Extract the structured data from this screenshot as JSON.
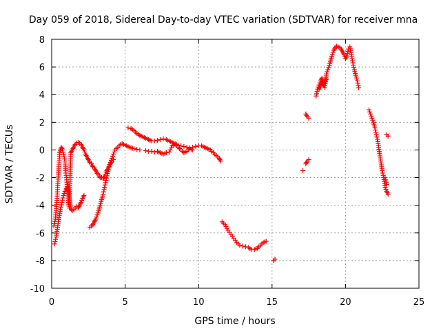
{
  "chart_data": {
    "type": "scatter",
    "title": "Day 059 of 2018, Sidereal Day-to-day VTEC variation (SDTVAR) for receiver mna",
    "xlabel": "GPS time / hours",
    "ylabel": "SDTVAR / TECUs",
    "xlim": [
      0,
      25
    ],
    "ylim": [
      -10,
      8
    ],
    "x_ticks": [
      0,
      5,
      10,
      15,
      20,
      25
    ],
    "y_ticks": [
      -10,
      -8,
      -6,
      -4,
      -2,
      0,
      2,
      4,
      6,
      8
    ],
    "grid": true,
    "marker": "+",
    "series": [
      {
        "name": "SDTVAR",
        "color": "#ff0000",
        "segments": [
          {
            "x": [
              0.15,
              0.25,
              0.35,
              0.45,
              0.55,
              0.65,
              0.75,
              0.85,
              0.9,
              0.95,
              1.0,
              1.05,
              1.1,
              1.15,
              1.2,
              1.3,
              1.4,
              1.5,
              1.6,
              1.7,
              1.8,
              1.9,
              2.0,
              2.1,
              2.2,
              2.3,
              2.4,
              2.5,
              2.6,
              2.7,
              2.8,
              2.9,
              3.0,
              3.1,
              3.2,
              3.3,
              3.4,
              3.5,
              3.6,
              3.7,
              3.8,
              3.9,
              4.0,
              4.1,
              4.2,
              4.3,
              4.4,
              4.5,
              4.6,
              4.7,
              4.8,
              4.9,
              5.0,
              5.1,
              5.2,
              5.3,
              5.4,
              5.5,
              5.6,
              5.8,
              6.0
            ],
            "y": [
              -5.5,
              -5.0,
              -3.8,
              -1.8,
              -0.2,
              0.2,
              0.0,
              -0.5,
              -0.8,
              -1.5,
              -2.0,
              -2.5,
              -3.0,
              -3.8,
              -4.2,
              -0.2,
              0.0,
              0.2,
              0.4,
              0.5,
              0.55,
              0.5,
              0.4,
              0.2,
              0.0,
              -0.3,
              -0.5,
              -0.7,
              -0.9,
              -1.0,
              -1.2,
              -1.3,
              -1.5,
              -1.7,
              -1.8,
              -2.0,
              -2.0,
              -2.1,
              -1.9,
              -1.6,
              -1.4,
              -1.2,
              -0.9,
              -0.6,
              -0.3,
              0.0,
              0.1,
              0.2,
              0.3,
              0.4,
              0.45,
              0.4,
              0.35,
              0.3,
              0.25,
              0.2,
              0.15,
              0.12,
              0.1,
              0.05,
              0.0
            ]
          },
          {
            "x": [
              0.2,
              0.3,
              0.4,
              0.5,
              0.6,
              0.7,
              0.8,
              0.9,
              1.0,
              1.1,
              1.2,
              1.3,
              1.4,
              1.5,
              1.6,
              1.7,
              1.8,
              1.9,
              2.0,
              2.1,
              2.2
            ],
            "y": [
              -6.8,
              -6.3,
              -5.6,
              -4.9,
              -4.3,
              -3.8,
              -3.3,
              -3.0,
              -2.8,
              -2.5,
              -3.5,
              -4.2,
              -4.4,
              -4.3,
              -4.2,
              -4.1,
              -4.2,
              -4.0,
              -3.8,
              -3.5,
              -3.3
            ]
          },
          {
            "x": [
              2.6,
              2.7,
              2.8,
              2.9,
              3.0,
              3.1,
              3.2,
              3.3,
              3.4,
              3.5,
              3.6,
              3.7,
              3.8,
              3.9,
              4.0,
              4.1,
              4.2
            ],
            "y": [
              -5.6,
              -5.5,
              -5.4,
              -5.2,
              -5.0,
              -4.7,
              -4.4,
              -4.0,
              -3.6,
              -3.2,
              -2.7,
              -2.2,
              -1.7,
              -1.3,
              -1.0,
              -0.8,
              -0.7
            ]
          },
          {
            "x": [
              5.2,
              5.4,
              5.6,
              5.8,
              6.0,
              6.2,
              6.4,
              6.6,
              6.8,
              7.0,
              7.2,
              7.4,
              7.6,
              7.8,
              8.0,
              8.2,
              8.4,
              8.6,
              8.8,
              9.0,
              9.2,
              9.4,
              9.6,
              9.8,
              10.0,
              10.2,
              10.4,
              10.6,
              10.8,
              11.0,
              11.2,
              11.4,
              11.5
            ],
            "y": [
              1.6,
              1.55,
              1.4,
              1.2,
              1.05,
              0.95,
              0.85,
              0.75,
              0.65,
              0.65,
              0.7,
              0.75,
              0.8,
              0.75,
              0.65,
              0.55,
              0.45,
              0.35,
              0.3,
              0.25,
              0.2,
              0.15,
              0.2,
              0.25,
              0.3,
              0.3,
              0.2,
              0.1,
              0.0,
              -0.2,
              -0.4,
              -0.6,
              -0.8
            ]
          },
          {
            "x": [
              6.4,
              6.6,
              6.8,
              7.0,
              7.2,
              7.4,
              7.6,
              7.8,
              8.0,
              8.2,
              8.4,
              8.6,
              8.8,
              9.0,
              9.2,
              9.4,
              9.6
            ],
            "y": [
              -0.05,
              -0.1,
              -0.1,
              -0.15,
              -0.1,
              -0.2,
              -0.3,
              -0.2,
              -0.15,
              0.3,
              0.4,
              0.2,
              0.0,
              -0.2,
              -0.1,
              0.1,
              0.0
            ]
          },
          {
            "x": [
              11.6,
              11.8,
              12.0,
              12.2,
              12.4,
              12.6,
              12.8,
              13.0,
              13.2,
              13.4,
              13.6,
              13.8,
              14.0,
              14.2,
              14.4,
              14.6
            ],
            "y": [
              -5.2,
              -5.4,
              -5.8,
              -6.1,
              -6.4,
              -6.7,
              -6.9,
              -6.95,
              -7.0,
              -7.05,
              -7.2,
              -7.2,
              -7.1,
              -6.9,
              -6.7,
              -6.6
            ]
          },
          {
            "x": [
              15.1,
              15.2
            ],
            "y": [
              -8.0,
              -7.9
            ]
          },
          {
            "x": [
              17.1
            ],
            "y": [
              -1.5
            ]
          },
          {
            "x": [
              17.3,
              17.4,
              17.5
            ],
            "y": [
              -1.0,
              -0.8,
              -0.7
            ]
          },
          {
            "x": [
              17.3,
              17.4,
              17.5
            ],
            "y": [
              2.6,
              2.4,
              2.3
            ]
          },
          {
            "x": [
              18.0,
              18.1,
              18.2,
              18.3,
              18.4,
              18.5,
              18.6,
              18.7,
              18.8,
              18.9,
              19.0,
              19.1,
              19.2,
              19.3,
              19.4,
              19.5,
              19.6,
              19.7,
              19.8,
              19.9,
              20.0,
              20.1,
              20.2,
              20.3,
              20.4,
              20.5,
              20.6,
              20.7,
              20.8,
              20.9
            ],
            "y": [
              3.9,
              4.4,
              4.7,
              5.0,
              5.2,
              4.8,
              4.5,
              5.5,
              5.8,
              6.1,
              6.5,
              6.9,
              7.2,
              7.4,
              7.5,
              7.45,
              7.4,
              7.3,
              7.1,
              6.9,
              6.6,
              6.8,
              7.3,
              7.45,
              6.9,
              6.3,
              5.8,
              5.4,
              5.0,
              4.5
            ]
          },
          {
            "x": [
              18.2,
              18.3,
              18.4,
              18.5,
              18.6,
              18.7
            ],
            "y": [
              4.4,
              4.6,
              4.9,
              4.7,
              5.0,
              5.1
            ]
          },
          {
            "x": [
              21.6,
              21.7,
              21.8,
              21.9,
              22.0,
              22.1,
              22.2,
              22.3,
              22.4,
              22.5,
              22.6,
              22.7,
              22.8,
              22.9
            ],
            "y": [
              2.9,
              2.6,
              2.3,
              2.0,
              1.6,
              1.1,
              0.6,
              -0.1,
              -0.8,
              -1.5,
              -2.0,
              -2.7,
              -3.0,
              -3.2
            ]
          },
          {
            "x": [
              22.7,
              22.8
            ],
            "y": [
              -2.0,
              -2.5
            ]
          },
          {
            "x": [
              22.8,
              22.9
            ],
            "y": [
              1.1,
              1.0
            ]
          }
        ]
      }
    ]
  }
}
